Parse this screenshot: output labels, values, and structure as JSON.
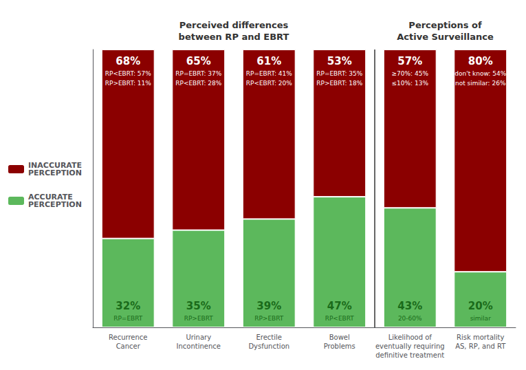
{
  "chart_data": {
    "type": "bar",
    "stacked": true,
    "categories": [
      "Recurrence\nCancer",
      "Urinary\nIncontinence",
      "Erectile\nDysfunction",
      "Bowel\nProblems",
      "Likelihood of\neventually requiring\ndefinitive treatment",
      "Risk mortality\nAS, RP, and RT"
    ],
    "series": [
      {
        "name": "ACCURATE\nPERCEPTION",
        "color": "#5CB85C",
        "values": [
          32,
          35,
          39,
          47,
          43,
          20
        ],
        "value_labels": [
          "32%",
          "35%",
          "39%",
          "47%",
          "43%",
          "20%"
        ],
        "annotations": [
          [
            "RP=EBRT"
          ],
          [
            "RP>EBRT"
          ],
          [
            "RP>EBRT"
          ],
          [
            "RP<EBRT"
          ],
          [
            "20-60%"
          ],
          [
            "similar"
          ]
        ]
      },
      {
        "name": "INACCURATE\nPERCEPTION",
        "color": "#8B0000",
        "values": [
          68,
          65,
          61,
          53,
          57,
          80
        ],
        "value_labels": [
          "68%",
          "65%",
          "61%",
          "53%",
          "57%",
          "80%"
        ],
        "annotations": [
          [
            "RP<EBRT: 57%",
            "RP>EBRT: 11%"
          ],
          [
            "RP=EBRT: 37%",
            "RP<EBRT: 28%"
          ],
          [
            "RP=EBRT: 41%",
            "RP<EBRT: 20%"
          ],
          [
            "RP=EBRT: 35%",
            "RP>EBRT: 18%"
          ],
          [
            "≥70%: 45%",
            "≤10%: 13%"
          ],
          [
            "don't know: 54%",
            "not similar: 26%"
          ]
        ]
      }
    ],
    "annotations": [
      {
        "text": "Perceived differences\nbetween RP and EBRT",
        "categories": [
          "Recurrence\nCancer",
          "Urinary\nIncontinence",
          "Erectile\nDysfunction",
          "Bowel\nProblems"
        ]
      },
      {
        "text": "Perceptions of\nActive Surveillance",
        "categories": [
          "Likelihood of\neventually requiring\ndefinitive treatment",
          "Risk mortality\nAS, RP, and RT"
        ]
      }
    ],
    "ylim": [
      0,
      100
    ],
    "yticks": [],
    "grid": false,
    "legend": "left",
    "data_labels": true,
    "tick_labels": "x"
  }
}
